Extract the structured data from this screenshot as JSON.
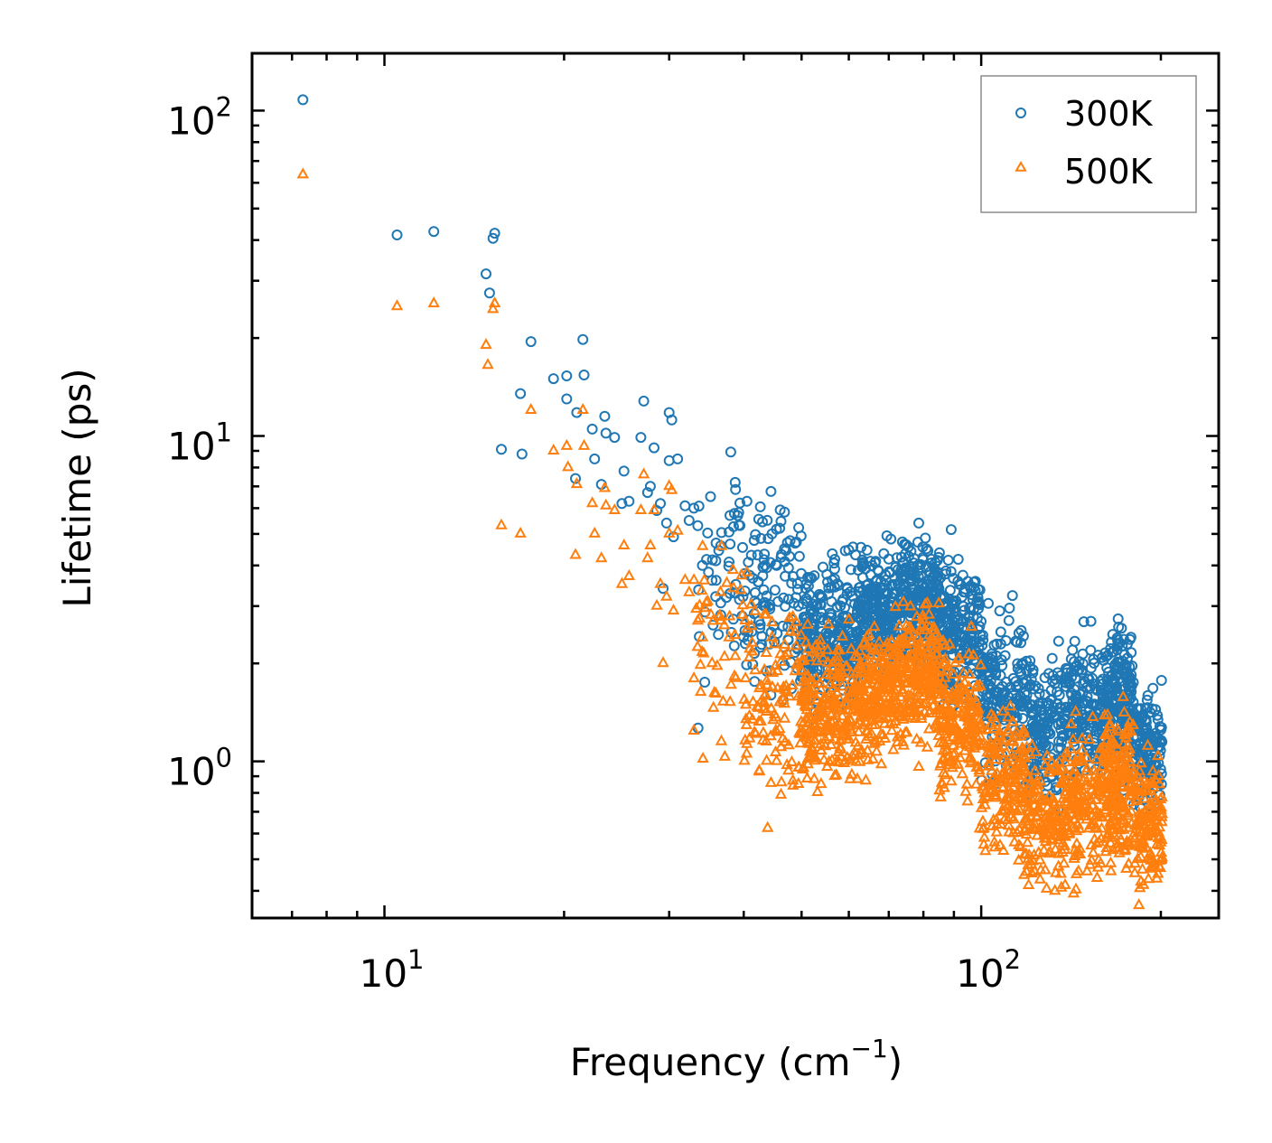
{
  "chart_data": {
    "type": "scatter",
    "xscale": "log",
    "yscale": "log",
    "xlim": [
      6.0,
      250
    ],
    "ylim": [
      0.33,
      150
    ],
    "xlabel": "Frequency (cm",
    "xlabel_sup": "−1",
    "xlabel_end": ")",
    "ylabel": "Lifetime (ps)",
    "x_ticks": [
      {
        "value": 10,
        "base": "10",
        "exp": "1"
      },
      {
        "value": 100,
        "base": "10",
        "exp": "2"
      }
    ],
    "y_ticks": [
      {
        "value": 1,
        "base": "10",
        "exp": "0"
      },
      {
        "value": 10,
        "base": "10",
        "exp": "1"
      },
      {
        "value": 100,
        "base": "10",
        "exp": "2"
      }
    ],
    "legend": {
      "position": "top-right"
    },
    "series": [
      {
        "name": "300K",
        "marker": "circle",
        "color": "#1f77b4",
        "points": [
          [
            7.3,
            108
          ],
          [
            10.5,
            41.5
          ],
          [
            12.1,
            42.5
          ],
          [
            14.8,
            31.5
          ],
          [
            15.0,
            27.5
          ],
          [
            15.2,
            40.5
          ],
          [
            15.3,
            42.0
          ],
          [
            15.7,
            9.1
          ],
          [
            16.9,
            13.5
          ],
          [
            17.0,
            8.8
          ],
          [
            17.6,
            19.5
          ],
          [
            19.2,
            15.0
          ],
          [
            20.2,
            15.3
          ],
          [
            20.2,
            13.0
          ],
          [
            20.9,
            7.4
          ],
          [
            21.0,
            11.8
          ],
          [
            21.5,
            19.8
          ],
          [
            21.6,
            15.4
          ],
          [
            22.3,
            10.5
          ],
          [
            22.5,
            8.5
          ],
          [
            23.1,
            7.1
          ],
          [
            23.4,
            11.5
          ],
          [
            23.5,
            10.2
          ],
          [
            24.3,
            9.9
          ],
          [
            25.0,
            6.2
          ],
          [
            25.2,
            7.8
          ],
          [
            25.7,
            6.3
          ],
          [
            26.9,
            9.9
          ],
          [
            27.2,
            12.8
          ],
          [
            27.6,
            6.7
          ],
          [
            27.9,
            7.0
          ],
          [
            28.3,
            9.2
          ],
          [
            28.6,
            5.9
          ],
          [
            29.0,
            6.2
          ],
          [
            29.3,
            3.4
          ],
          [
            29.7,
            5.4
          ],
          [
            30.0,
            11.8
          ],
          [
            30.0,
            8.4
          ],
          [
            30.3,
            11.2
          ],
          [
            30.5,
            4.9
          ],
          [
            31.0,
            8.5
          ],
          [
            31.9,
            6.1
          ],
          [
            32.4,
            5.5
          ],
          [
            33.0,
            6.0
          ],
          [
            33.5,
            5.3
          ],
          [
            34.1,
            4.0
          ],
          [
            35.4,
            3.6
          ],
          [
            36.6,
            4.6
          ],
          [
            37.8,
            4.1
          ],
          [
            38.8,
            3.5
          ],
          [
            38.7,
            7.2
          ],
          [
            40.5,
            6.3
          ],
          [
            41.2,
            4.3
          ],
          [
            41.8,
            3.3
          ],
          [
            43.5,
            3.0
          ],
          [
            44.6,
            5.0
          ],
          [
            45.4,
            4.0
          ],
          [
            46.8,
            4.5
          ],
          [
            48.4,
            3.7
          ],
          [
            49.4,
            3.0
          ],
          [
            50.8,
            3.4
          ],
          [
            52.5,
            2.6
          ],
          [
            54.1,
            3.2
          ],
          [
            56.8,
            3.9
          ],
          [
            59.1,
            2.8
          ],
          [
            62.0,
            2.9
          ],
          [
            64.6,
            3.5
          ],
          [
            66.9,
            3.6
          ],
          [
            70.4,
            3.8
          ],
          [
            74.1,
            4.1
          ],
          [
            76.6,
            3.6
          ],
          [
            78.6,
            5.4
          ],
          [
            81.2,
            3.5
          ],
          [
            83.5,
            3.9
          ],
          [
            88.0,
            3.0
          ],
          [
            92.8,
            3.2
          ],
          [
            99.4,
            2.6
          ],
          [
            104.3,
            2.1
          ],
          [
            107.4,
            2.9
          ],
          [
            113.2,
            1.5
          ],
          [
            119.2,
            1.9
          ],
          [
            127.9,
            1.6
          ],
          [
            136.0,
            1.1
          ],
          [
            143.9,
            1.8
          ],
          [
            152.9,
            1.5
          ],
          [
            162.0,
            2.1
          ],
          [
            169.0,
            2.2
          ],
          [
            175.2,
            1.8
          ],
          [
            180.6,
            1.4
          ],
          [
            190.1,
            1.2
          ],
          [
            197.8,
            0.9
          ],
          [
            200.5,
            0.85
          ]
        ],
        "clusters": [
          {
            "x": [
              33.0,
              40.0
            ],
            "y_center": 4.0,
            "spread": 0.16,
            "count": 45
          },
          {
            "x": [
              40.0,
              50.0
            ],
            "y_center": 3.1,
            "spread": 0.14,
            "count": 110
          },
          {
            "x": [
              50.0,
              62.0
            ],
            "y_center": 2.45,
            "spread": 0.1,
            "count": 240
          },
          {
            "x": [
              62.0,
              72.0
            ],
            "y_center": 2.9,
            "spread": 0.09,
            "count": 220
          },
          {
            "x": [
              72.0,
              85.0
            ],
            "y_center": 3.1,
            "spread": 0.09,
            "count": 240
          },
          {
            "x": [
              85.0,
              100.0
            ],
            "y_center": 2.45,
            "spread": 0.11,
            "count": 200
          },
          {
            "x": [
              100.0,
              118.0
            ],
            "y_center": 1.6,
            "spread": 0.11,
            "count": 170
          },
          {
            "x": [
              118.0,
              138.0
            ],
            "y_center": 1.25,
            "spread": 0.11,
            "count": 160
          },
          {
            "x": [
              138.0,
              160.0
            ],
            "y_center": 1.4,
            "spread": 0.1,
            "count": 170
          },
          {
            "x": [
              160.0,
              180.0
            ],
            "y_center": 1.55,
            "spread": 0.11,
            "count": 200
          },
          {
            "x": [
              180.0,
              201.0
            ],
            "y_center": 1.1,
            "spread": 0.09,
            "count": 130
          }
        ]
      },
      {
        "name": "500K",
        "marker": "triangle",
        "color": "#ff7f0e",
        "points": [
          [
            7.3,
            63.5
          ],
          [
            10.5,
            25.0
          ],
          [
            12.1,
            25.5
          ],
          [
            14.8,
            19.0
          ],
          [
            14.9,
            16.5
          ],
          [
            15.2,
            24.5
          ],
          [
            15.3,
            25.5
          ],
          [
            15.7,
            5.3
          ],
          [
            16.9,
            5.0
          ],
          [
            17.6,
            12.0
          ],
          [
            19.2,
            9.0
          ],
          [
            20.2,
            9.3
          ],
          [
            20.3,
            8.0
          ],
          [
            20.9,
            4.3
          ],
          [
            21.0,
            7.1
          ],
          [
            21.5,
            12.0
          ],
          [
            21.6,
            9.3
          ],
          [
            22.3,
            6.2
          ],
          [
            22.5,
            5.0
          ],
          [
            23.1,
            4.2
          ],
          [
            23.4,
            6.9
          ],
          [
            23.5,
            6.1
          ],
          [
            24.3,
            5.9
          ],
          [
            25.0,
            3.5
          ],
          [
            25.2,
            4.6
          ],
          [
            25.7,
            3.7
          ],
          [
            26.9,
            5.9
          ],
          [
            27.2,
            7.6
          ],
          [
            27.6,
            4.2
          ],
          [
            27.9,
            4.6
          ],
          [
            28.3,
            5.9
          ],
          [
            28.6,
            3.0
          ],
          [
            29.0,
            3.5
          ],
          [
            29.3,
            2.0
          ],
          [
            29.7,
            3.2
          ],
          [
            30.0,
            7.0
          ],
          [
            30.0,
            5.0
          ],
          [
            30.3,
            6.8
          ],
          [
            30.5,
            2.9
          ],
          [
            31.0,
            5.1
          ],
          [
            31.9,
            3.6
          ],
          [
            32.4,
            3.3
          ],
          [
            33.0,
            3.6
          ],
          [
            33.5,
            2.7
          ],
          [
            34.1,
            2.4
          ],
          [
            35.4,
            2.0
          ],
          [
            36.6,
            2.7
          ],
          [
            37.8,
            2.4
          ],
          [
            38.8,
            1.8
          ],
          [
            40.5,
            3.8
          ],
          [
            41.2,
            2.6
          ],
          [
            41.8,
            1.9
          ],
          [
            43.5,
            1.6
          ],
          [
            44.6,
            2.4
          ],
          [
            45.4,
            1.0
          ],
          [
            46.8,
            1.5
          ],
          [
            48.4,
            0.84
          ],
          [
            49.4,
            0.85
          ],
          [
            50.8,
            1.2
          ],
          [
            52.5,
            0.88
          ],
          [
            54.1,
            1.4
          ],
          [
            56.8,
            0.9
          ],
          [
            59.1,
            1.0
          ],
          [
            62.0,
            0.88
          ],
          [
            64.6,
            1.5
          ],
          [
            66.9,
            1.7
          ],
          [
            70.4,
            1.9
          ],
          [
            74.1,
            2.3
          ],
          [
            76.6,
            2.1
          ],
          [
            78.6,
            0.96
          ],
          [
            81.2,
            1.1
          ],
          [
            83.5,
            1.9
          ],
          [
            88.0,
            1.3
          ],
          [
            92.8,
            1.5
          ],
          [
            99.4,
            0.62
          ],
          [
            104.3,
            0.63
          ],
          [
            107.4,
            1.2
          ],
          [
            113.2,
            0.6
          ],
          [
            119.2,
            1.1
          ],
          [
            127.9,
            0.62
          ],
          [
            136.0,
            0.45
          ],
          [
            143.9,
            1.0
          ],
          [
            152.9,
            0.55
          ],
          [
            162.0,
            1.2
          ],
          [
            169.0,
            1.25
          ],
          [
            175.2,
            0.9
          ],
          [
            180.6,
            0.6
          ],
          [
            190.1,
            0.5
          ],
          [
            197.8,
            0.45
          ],
          [
            200.5,
            0.5
          ]
        ],
        "clusters": [
          {
            "x": [
              33.0,
              40.0
            ],
            "y_center": 2.3,
            "spread": 0.16,
            "count": 45
          },
          {
            "x": [
              40.0,
              50.0
            ],
            "y_center": 1.55,
            "spread": 0.14,
            "count": 110
          },
          {
            "x": [
              50.0,
              62.0
            ],
            "y_center": 1.45,
            "spread": 0.1,
            "count": 240
          },
          {
            "x": [
              62.0,
              72.0
            ],
            "y_center": 1.6,
            "spread": 0.09,
            "count": 220
          },
          {
            "x": [
              72.0,
              85.0
            ],
            "y_center": 1.8,
            "spread": 0.09,
            "count": 240
          },
          {
            "x": [
              85.0,
              100.0
            ],
            "y_center": 1.35,
            "spread": 0.11,
            "count": 200
          },
          {
            "x": [
              100.0,
              118.0
            ],
            "y_center": 0.85,
            "spread": 0.11,
            "count": 170
          },
          {
            "x": [
              118.0,
              138.0
            ],
            "y_center": 0.68,
            "spread": 0.11,
            "count": 160
          },
          {
            "x": [
              138.0,
              160.0
            ],
            "y_center": 0.72,
            "spread": 0.1,
            "count": 170
          },
          {
            "x": [
              160.0,
              180.0
            ],
            "y_center": 0.85,
            "spread": 0.11,
            "count": 200
          },
          {
            "x": [
              180.0,
              201.0
            ],
            "y_center": 0.62,
            "spread": 0.09,
            "count": 130
          }
        ]
      }
    ]
  }
}
